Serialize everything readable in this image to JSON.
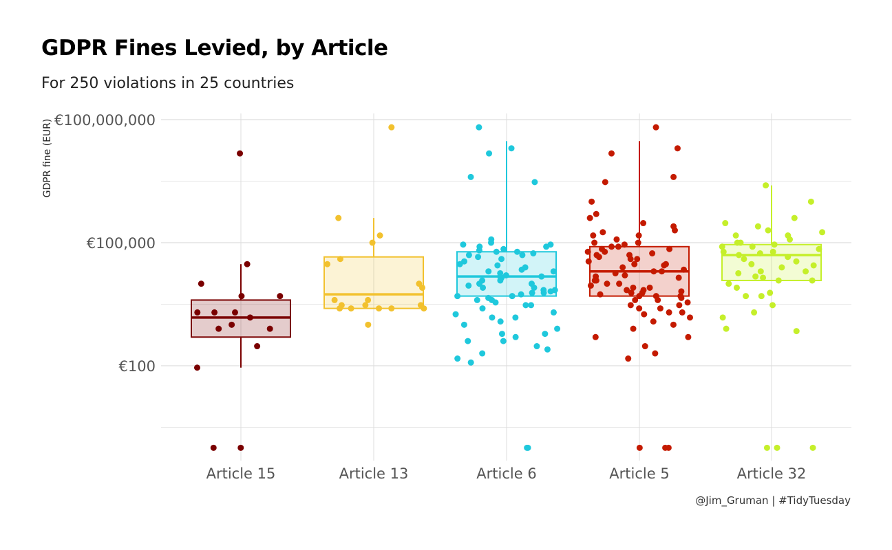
{
  "title": "GDPR Fines Levied, by Article",
  "subtitle": "For 250 violations in 25 countries",
  "caption": "@Jim_Gruman | #TidyTuesday",
  "chart_data": {
    "type": "boxplot",
    "ylabel": "GDPR fine (EUR)",
    "xlabel": "",
    "y_scale": "log10",
    "ylim": [
      1,
      100000000
    ],
    "y_ticks": [
      100,
      100000,
      100000000
    ],
    "y_tick_labels": [
      "€100",
      "€100,000",
      "€100,000,000"
    ],
    "grid": true,
    "categories": [
      "Article 15",
      "Article 13",
      "Article 6",
      "Article 5",
      "Article 32"
    ],
    "colors": [
      "#7a0000",
      "#f2c12e",
      "#1fc8dc",
      "#c41a00",
      "#c5ef2a"
    ],
    "boxes": [
      {
        "q1": 500,
        "median": 1500,
        "q3": 4000,
        "whisker_low": 90,
        "whisker_high": 30000
      },
      {
        "q1": 2500,
        "median": 5500,
        "q3": 45000,
        "whisker_low": 2500,
        "whisker_high": 400000
      },
      {
        "q1": 5000,
        "median": 15000,
        "q3": 60000,
        "whisker_low": 5000,
        "whisker_high": 30000000
      },
      {
        "q1": 5000,
        "median": 20000,
        "q3": 80000,
        "whisker_low": 5000,
        "whisker_high": 30000000
      },
      {
        "q1": 12000,
        "median": 50000,
        "q3": 90000,
        "whisker_low": 12000,
        "whisker_high": 2500000
      }
    ],
    "points": [
      [
        15000000,
        30000,
        10000,
        2000,
        2000,
        5000,
        2000,
        5000,
        1500,
        1000,
        800,
        800,
        300,
        90,
        1,
        1
      ],
      [
        65000000,
        400000,
        150000,
        100000,
        40000,
        30000,
        10000,
        8000,
        4000,
        4000,
        3000,
        3000,
        3000,
        2500,
        2500,
        2500,
        2500,
        2500,
        1000
      ],
      [
        65000000,
        20000000,
        15000000,
        4000000,
        3000000,
        120000,
        100000,
        90000,
        90000,
        80000,
        80000,
        70000,
        65000,
        60000,
        60000,
        55000,
        50000,
        50000,
        45000,
        40000,
        35000,
        30000,
        28000,
        25000,
        22000,
        20000,
        20000,
        18000,
        16000,
        15000,
        15000,
        14000,
        12000,
        12000,
        10000,
        10000,
        9000,
        8000,
        8000,
        7000,
        7000,
        6500,
        6000,
        6000,
        5500,
        5000,
        5000,
        4500,
        4000,
        4000,
        3500,
        3000,
        3000,
        2500,
        2000,
        1800,
        1500,
        1500,
        1200,
        1000,
        800,
        600,
        600,
        500,
        400,
        400,
        300,
        250,
        200,
        150,
        120,
        1,
        1
      ],
      [
        65000000,
        20000000,
        15000000,
        4000000,
        3000000,
        1000000,
        500000,
        400000,
        300000,
        250000,
        200000,
        180000,
        150000,
        150000,
        120000,
        100000,
        100000,
        90000,
        80000,
        80000,
        70000,
        70000,
        60000,
        60000,
        55000,
        50000,
        50000,
        45000,
        40000,
        40000,
        35000,
        30000,
        30000,
        28000,
        25000,
        22000,
        20000,
        20000,
        18000,
        16000,
        15000,
        14000,
        12000,
        12000,
        10000,
        10000,
        9000,
        8000,
        8000,
        7000,
        7000,
        6500,
        6000,
        6000,
        5500,
        5000,
        5000,
        5000,
        4500,
        4000,
        4000,
        3500,
        3000,
        3000,
        2500,
        2500,
        2000,
        2000,
        1800,
        1500,
        1200,
        1000,
        800,
        500,
        500,
        300,
        200,
        150,
        1,
        1,
        1
      ],
      [
        2500000,
        1000000,
        400000,
        300000,
        250000,
        200000,
        180000,
        150000,
        150000,
        120000,
        100000,
        100000,
        90000,
        80000,
        80000,
        70000,
        60000,
        60000,
        55000,
        50000,
        45000,
        40000,
        35000,
        30000,
        28000,
        25000,
        20000,
        20000,
        18000,
        15000,
        14000,
        12000,
        12000,
        10000,
        8000,
        6000,
        5000,
        5000,
        3000,
        2000,
        1500,
        800,
        700,
        1,
        1,
        1
      ]
    ]
  }
}
